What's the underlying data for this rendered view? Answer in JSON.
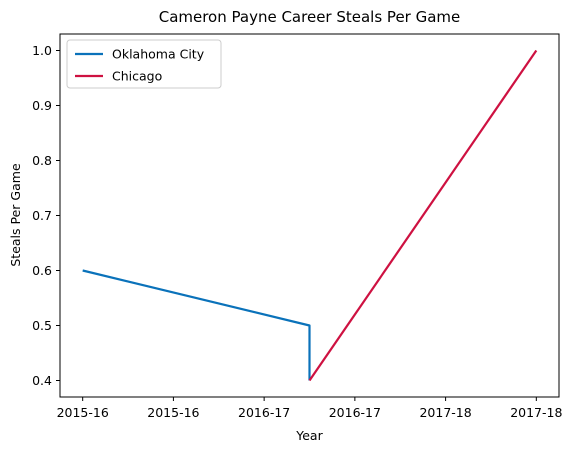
{
  "chart_data": {
    "type": "line",
    "title": "Cameron Payne Career Steals Per Game",
    "xlabel": "Year",
    "ylabel": "Steals Per Game",
    "x_tick_labels": [
      "2015-16",
      "2015-16",
      "2016-17",
      "2016-17",
      "2017-18",
      "2017-18"
    ],
    "x_tick_positions": [
      0,
      1,
      2,
      3,
      4,
      5
    ],
    "xlim": [
      -0.25,
      5.25
    ],
    "ylim": [
      0.37,
      1.03
    ],
    "y_ticks": [
      0.4,
      0.5,
      0.6,
      0.7,
      0.8,
      0.9,
      1.0
    ],
    "y_tick_labels": [
      "0.4",
      "0.5",
      "0.6",
      "0.7",
      "0.8",
      "0.9",
      "1.0"
    ],
    "grid": false,
    "legend_position": "top-left",
    "series": [
      {
        "name": "Oklahoma City",
        "color": "#0a72ba",
        "points": [
          {
            "x": 0,
            "y": 0.6
          },
          {
            "x": 2.5,
            "y": 0.5
          },
          {
            "x": 2.5,
            "y": 0.4
          }
        ]
      },
      {
        "name": "Chicago",
        "color": "#ce1141",
        "points": [
          {
            "x": 2.5,
            "y": 0.4
          },
          {
            "x": 5,
            "y": 1.0
          }
        ]
      }
    ]
  }
}
